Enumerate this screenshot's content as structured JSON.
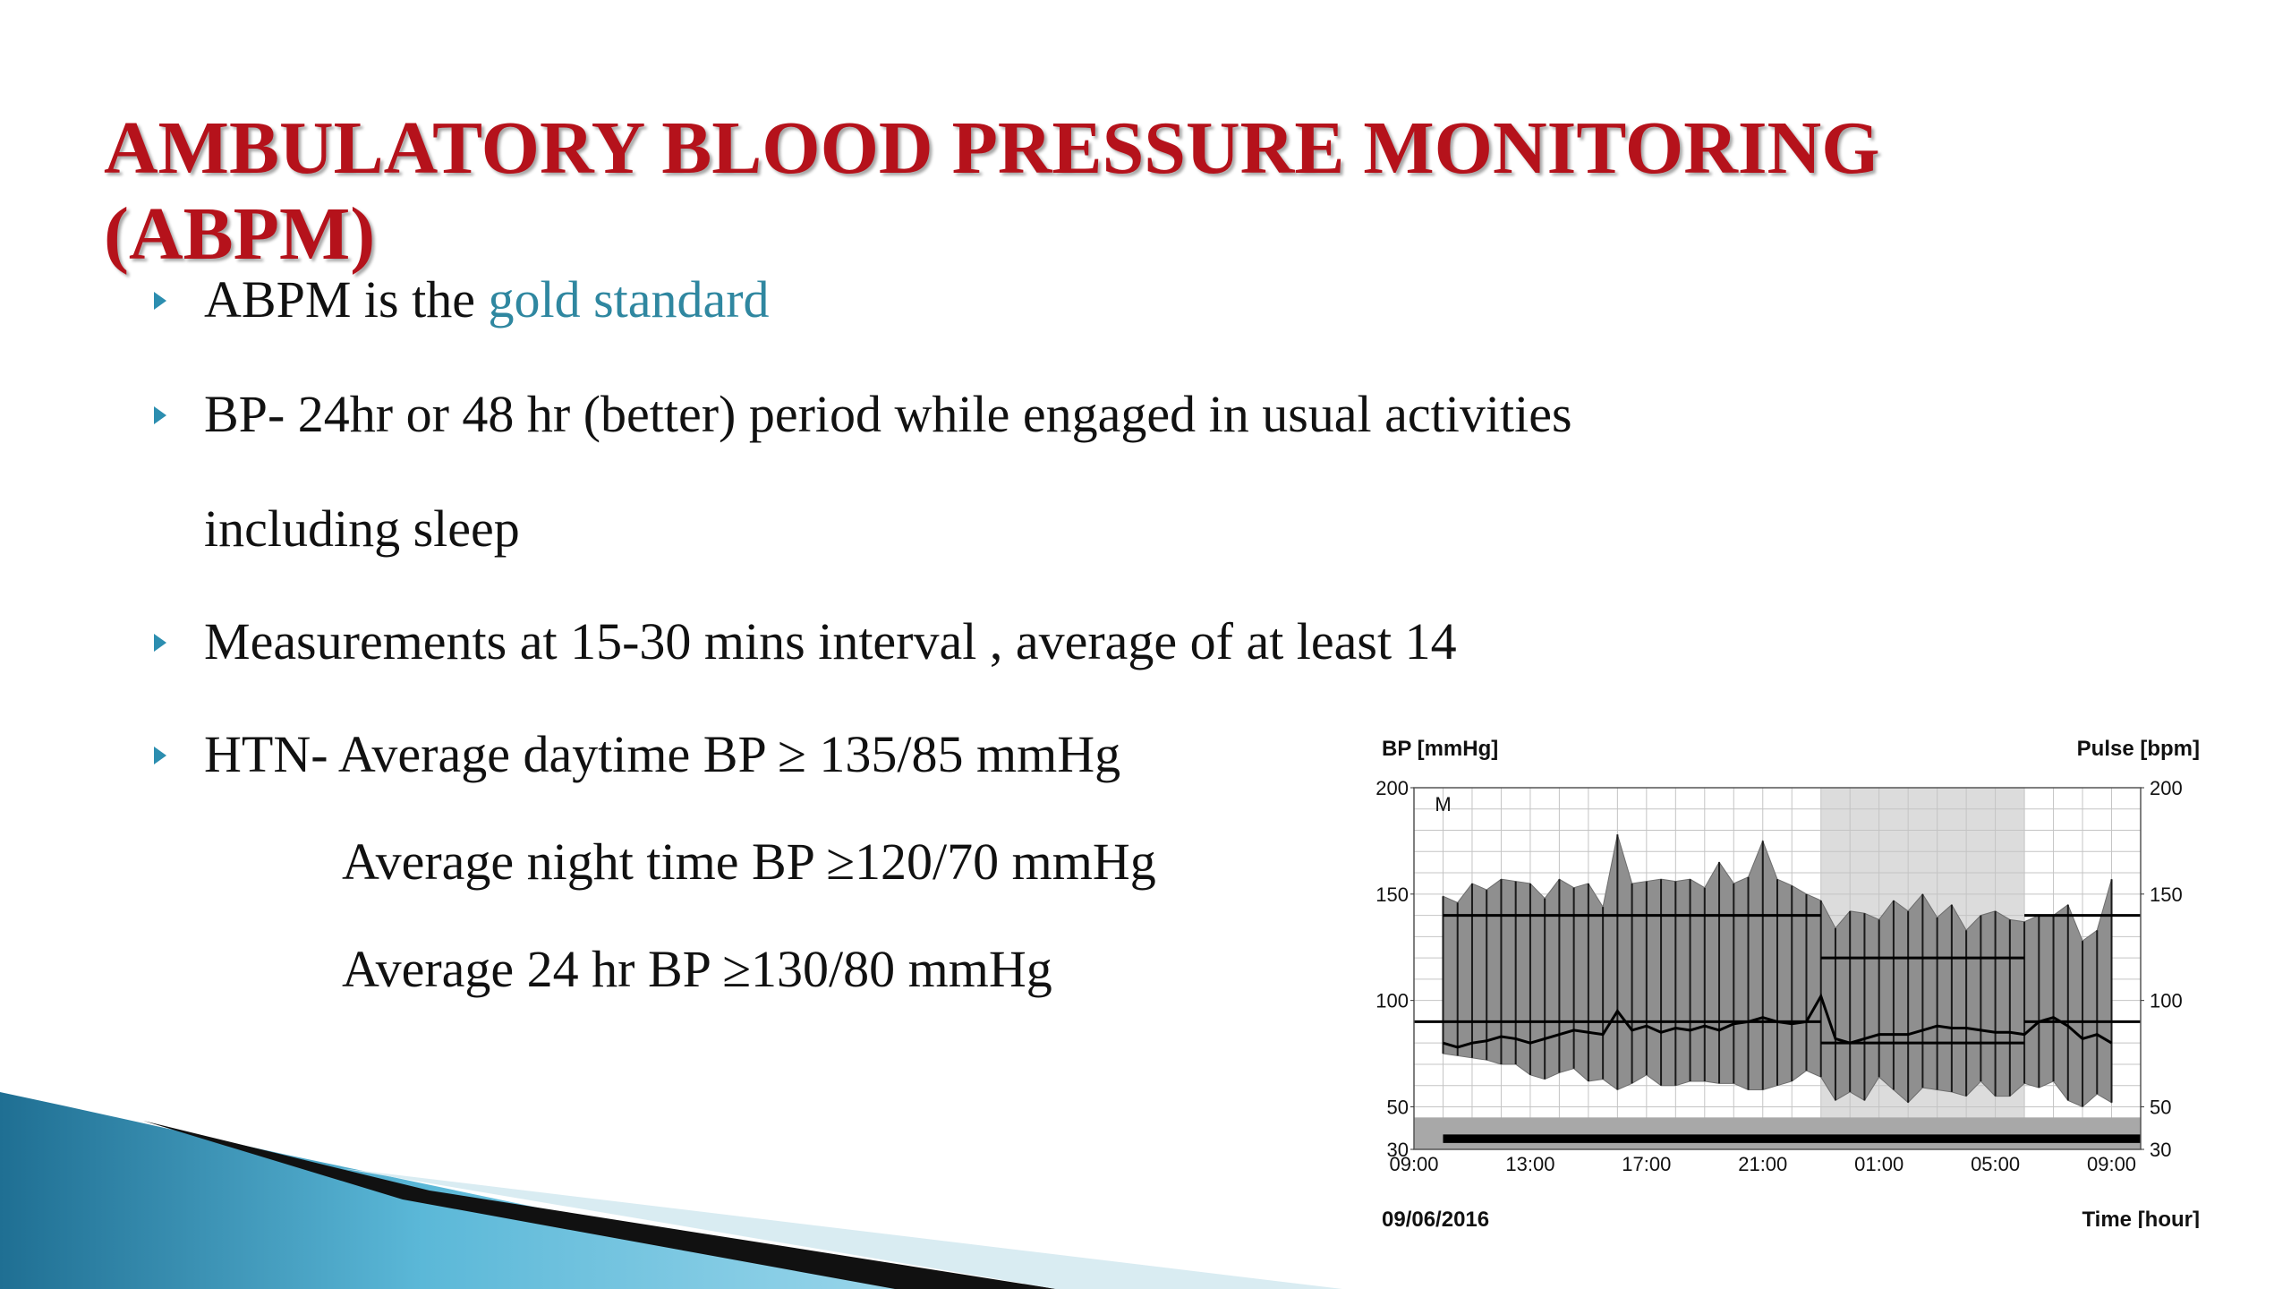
{
  "slide": {
    "title": "AMBULATORY BLOOD PRESSURE MONITORING (ABPM)",
    "bullet1": {
      "prefix": "ABPM is the ",
      "highlight": "gold standard"
    },
    "bullet2": {
      "line1": "BP- 24hr or 48 hr (better) period  while engaged in  usual activities",
      "line2": "including sleep"
    },
    "bullet3": "Measurements at 15-30 mins interval , average of at least 14",
    "bullet4": {
      "line1": "HTN-  Average daytime BP ≥ 135/85 mmHg",
      "line2": "Average  night time BP ≥120/70 mmHg",
      "line3": "Average 24 hr BP ≥130/80 mmHg"
    },
    "colors": {
      "title": "#b5121b",
      "accent": "#2f87a0",
      "bullet": "#2c8eb0"
    }
  },
  "chart_data": {
    "type": "line",
    "ylabel_left": "BP [mmHg]",
    "ylabel_right": "Pulse [bpm]",
    "xlabel": "Time [hour]",
    "date": "09/06/2016",
    "marker": "M",
    "y_range": [
      30,
      200
    ],
    "y_ticks": [
      30,
      50,
      100,
      150,
      200
    ],
    "x_range": [
      0,
      25
    ],
    "x_ticks": [
      {
        "h": 0,
        "label": "09:00"
      },
      {
        "h": 4,
        "label": "13:00"
      },
      {
        "h": 8,
        "label": "17:00"
      },
      {
        "h": 12,
        "label": "21:00"
      },
      {
        "h": 16,
        "label": "01:00"
      },
      {
        "h": 20,
        "label": "05:00"
      },
      {
        "h": 24,
        "label": "09:00"
      }
    ],
    "night_period": [
      14,
      21
    ],
    "thresholds": [
      {
        "name": "day systolic",
        "from": 1,
        "to": 14,
        "value": 140
      },
      {
        "name": "day diastolic",
        "from": 0,
        "to": 14,
        "value": 90
      },
      {
        "name": "night systolic",
        "from": 14,
        "to": 21,
        "value": 120
      },
      {
        "name": "night diastolic",
        "from": 14,
        "to": 21,
        "value": 80
      },
      {
        "name": "day systolic",
        "from": 21,
        "to": 25,
        "value": 140
      },
      {
        "name": "day diastolic",
        "from": 21,
        "to": 25,
        "value": 90
      }
    ],
    "time_h": [
      1.0,
      1.5,
      2.0,
      2.5,
      3.0,
      3.5,
      4.0,
      4.5,
      5.0,
      5.5,
      6.0,
      6.5,
      7.0,
      7.5,
      8.0,
      8.5,
      9.0,
      9.5,
      10.0,
      10.5,
      11.0,
      11.5,
      12.0,
      12.5,
      13.0,
      13.5,
      14.0,
      14.5,
      15.0,
      15.5,
      16.0,
      16.5,
      17.0,
      17.5,
      18.0,
      18.5,
      19.0,
      19.5,
      20.0,
      20.5,
      21.0,
      21.5,
      22.0,
      22.5,
      23.0,
      23.5,
      24.0
    ],
    "systolic": [
      149,
      146,
      155,
      152,
      157,
      156,
      155,
      148,
      157,
      153,
      155,
      144,
      178,
      155,
      156,
      157,
      156,
      157,
      153,
      165,
      155,
      158,
      175,
      157,
      154,
      150,
      147,
      134,
      142,
      141,
      138,
      147,
      142,
      150,
      139,
      145,
      133,
      140,
      142,
      138,
      137,
      140,
      140,
      145,
      128,
      133,
      157
    ],
    "diastolic": [
      75,
      74,
      73,
      72,
      70,
      70,
      65,
      63,
      66,
      68,
      62,
      63,
      58,
      61,
      65,
      60,
      60,
      62,
      62,
      61,
      61,
      58,
      58,
      60,
      62,
      67,
      64,
      53,
      57,
      53,
      64,
      58,
      52,
      59,
      58,
      57,
      55,
      62,
      55,
      55,
      61,
      59,
      62,
      53,
      50,
      56,
      52
    ],
    "pulse": [
      80,
      78,
      80,
      81,
      83,
      82,
      80,
      82,
      84,
      86,
      85,
      84,
      95,
      86,
      88,
      85,
      87,
      86,
      88,
      86,
      89,
      90,
      92,
      90,
      89,
      90,
      102,
      82,
      80,
      82,
      84,
      84,
      84,
      86,
      88,
      87,
      87,
      86,
      85,
      85,
      84,
      90,
      92,
      88,
      82,
      84,
      80
    ]
  }
}
